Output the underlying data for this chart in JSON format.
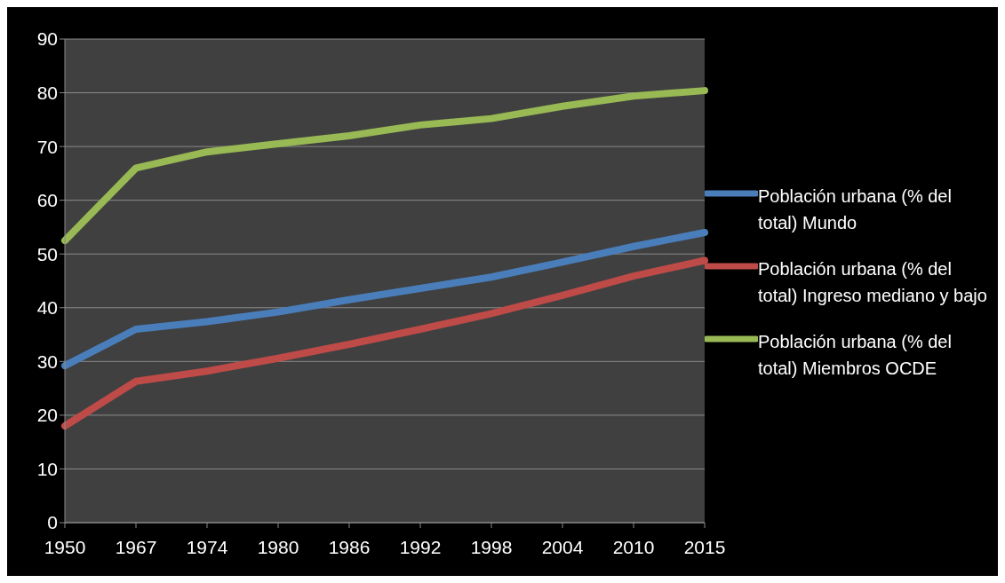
{
  "chart_data": {
    "type": "line",
    "categories": [
      "1950",
      "1967",
      "1974",
      "1980",
      "1986",
      "1992",
      "1998",
      "2004",
      "2010",
      "2015"
    ],
    "series": [
      {
        "name": "Población urbana (% del total) Mundo",
        "color": "#4a7ebb",
        "values": [
          29.2,
          36,
          37.4,
          39.2,
          41.5,
          43.6,
          45.7,
          48.5,
          51.4,
          54
        ]
      },
      {
        "name": "Población urbana (% del total) Ingreso mediano y bajo",
        "color": "#be4b48",
        "values": [
          18,
          26.3,
          28.2,
          30.6,
          33.2,
          36,
          38.9,
          42.3,
          45.9,
          48.8
        ]
      },
      {
        "name": "Población urbana (% del total) Miembros OCDE",
        "color": "#98b954",
        "values": [
          52.5,
          66,
          69,
          70.5,
          72,
          74,
          75.2,
          77.5,
          79.4,
          80.4
        ]
      }
    ],
    "ylim": [
      0,
      90
    ],
    "yticks": [
      0,
      10,
      20,
      30,
      40,
      50,
      60,
      70,
      80,
      90
    ],
    "grid": "y",
    "legend": "right",
    "marker": "none",
    "line_style": "solid"
  }
}
